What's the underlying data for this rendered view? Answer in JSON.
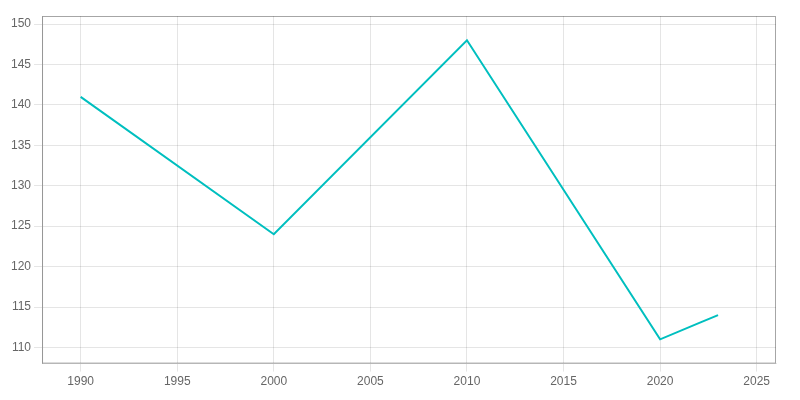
{
  "chart_data": {
    "type": "line",
    "x": [
      1990,
      2000,
      2010,
      2020,
      2022,
      2023
    ],
    "values": [
      141,
      124,
      148,
      111,
      113,
      114
    ],
    "color": "#00BFBF",
    "xlim": [
      1988,
      2026
    ],
    "ylim": [
      108,
      151
    ],
    "xticks": [
      1990,
      1995,
      2000,
      2005,
      2010,
      2015,
      2020,
      2025
    ],
    "yticks": [
      110,
      115,
      120,
      125,
      130,
      135,
      140,
      145,
      150
    ],
    "grid": true
  }
}
